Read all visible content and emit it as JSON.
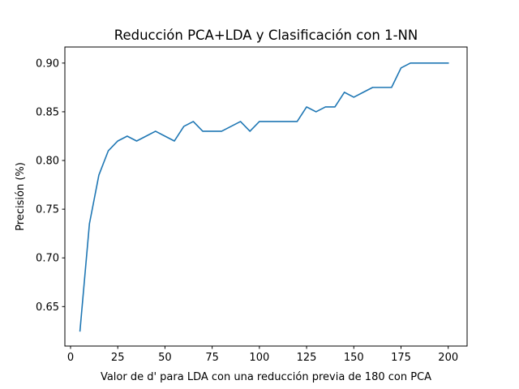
{
  "chart_data": {
    "type": "line",
    "title": "Reducción PCA+LDA y Clasificación con 1-NN",
    "xlabel": "Valor de d' para LDA con una reducción previa de 180 con PCA",
    "ylabel": "Precisión (%)",
    "xlim": [
      -3,
      210
    ],
    "ylim": [
      0.6095,
      0.9165
    ],
    "x_ticks": [
      0,
      25,
      50,
      75,
      100,
      125,
      150,
      175,
      200
    ],
    "x_tick_labels": [
      "0",
      "25",
      "50",
      "75",
      "100",
      "125",
      "150",
      "175",
      "200"
    ],
    "y_ticks": [
      0.65,
      0.7,
      0.75,
      0.8,
      0.85,
      0.9
    ],
    "y_tick_labels": [
      "0.65",
      "0.70",
      "0.75",
      "0.80",
      "0.85",
      "0.90"
    ],
    "grid": false,
    "series": [
      {
        "color": "#1f77b4",
        "x": [
          5,
          10,
          15,
          20,
          25,
          30,
          35,
          40,
          45,
          50,
          55,
          60,
          65,
          70,
          75,
          80,
          85,
          90,
          95,
          100,
          105,
          110,
          115,
          120,
          125,
          130,
          135,
          140,
          145,
          150,
          155,
          160,
          165,
          170,
          175,
          180,
          185,
          190,
          195,
          200
        ],
        "values": [
          0.625,
          0.735,
          0.785,
          0.81,
          0.82,
          0.825,
          0.82,
          0.825,
          0.83,
          0.825,
          0.82,
          0.835,
          0.84,
          0.83,
          0.83,
          0.83,
          0.835,
          0.84,
          0.83,
          0.84,
          0.84,
          0.84,
          0.84,
          0.84,
          0.855,
          0.85,
          0.855,
          0.855,
          0.87,
          0.865,
          0.87,
          0.875,
          0.875,
          0.875,
          0.895,
          0.9,
          0.9,
          0.9,
          0.9,
          0.9
        ]
      }
    ]
  }
}
